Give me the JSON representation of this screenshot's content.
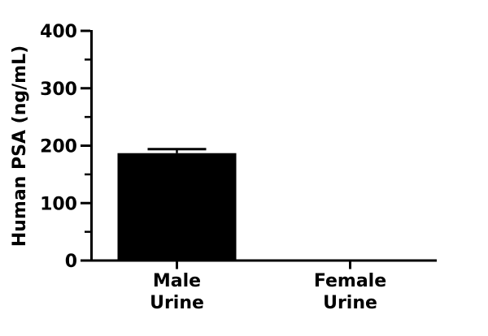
{
  "figure": {
    "background": "#ffffff"
  },
  "chart_data": {
    "type": "bar",
    "title": "",
    "ylabel": "Human PSA (ng/mL)",
    "xlabel": "",
    "categories": [
      [
        "Male",
        "Urine"
      ],
      [
        "Female",
        "Urine"
      ]
    ],
    "series": [
      {
        "name": "Human PSA",
        "values": [
          187,
          0
        ],
        "error_plus": [
          7,
          0
        ]
      }
    ],
    "ylim": [
      0,
      400
    ],
    "ytick_major_step": 100,
    "ytick_minor_step": 50,
    "ytick_labels": [
      "0",
      "100",
      "200",
      "300",
      "400"
    ],
    "grid": false,
    "legend": "none",
    "bar_color": "#000000",
    "axis_color": "#000000"
  }
}
